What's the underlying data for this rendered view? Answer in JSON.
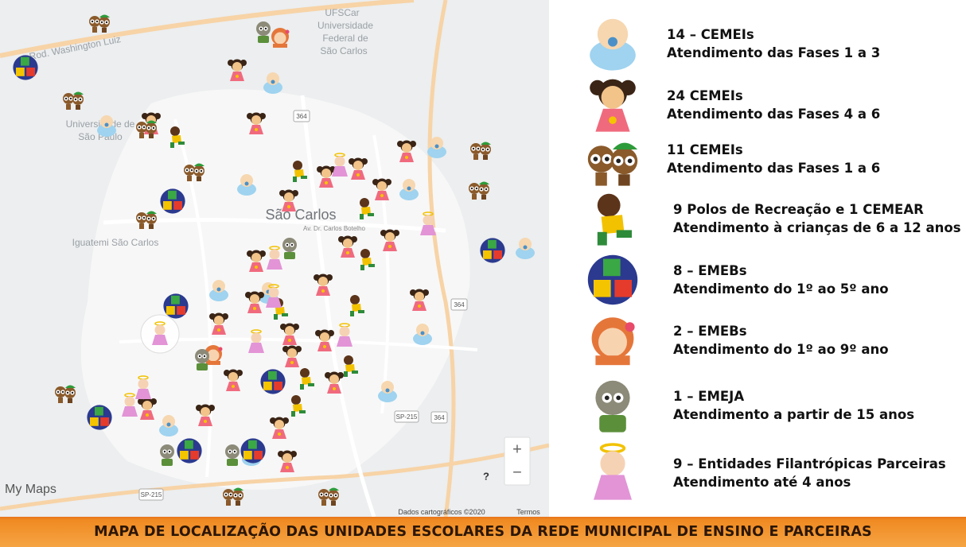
{
  "map": {
    "ufscar": [
      "UFSCar",
      "Universidade",
      "Federal de",
      "São Carlos"
    ],
    "road": "Rod. Washington Luiz",
    "usp": [
      "Universidade de",
      "São Paulo"
    ],
    "city": "São Carlos",
    "street": "Av. Dr. Carlos Botelho",
    "mall": "Iguatemi São Carlos",
    "shields": [
      "364",
      "364",
      "364",
      "SP-215",
      "SP-215"
    ],
    "brand": "My Maps",
    "credits": "Dados cartográficos ©2020",
    "terms": "Termos",
    "zoom_in": "+",
    "zoom_out": "−",
    "help": "?"
  },
  "legend": [
    {
      "title": "14 – CEMEIs",
      "description": "Atendimento das Fases 1 a 3"
    },
    {
      "title": "24 CEMEIs",
      "description": "Atendimento das Fases 4 a 6"
    },
    {
      "title": "11 CEMEIs",
      "description": "Atendimento das Fases 1 a 6"
    },
    {
      "title": "9 Polos de Recreação e 1 CEMEAR",
      "description": "Atendimento à crianças de 6 a 12 anos"
    },
    {
      "title": "8 – EMEBs",
      "description": "Atendimento do 1º ao 5º ano"
    },
    {
      "title": "2 – EMEBs",
      "description": "Atendimento do 1º ao 9º ano"
    },
    {
      "title": "1 – EMEJA",
      "description": "Atendimento a partir de 15 anos"
    },
    {
      "title": "9 – Entidades Filantrópicas Parceiras",
      "description": "Atendimento até 4 anos"
    }
  ],
  "footer": "MAPA DE LOCALIZAÇÃO DAS UNIDADES ESCOLARES DA REDE MUNICIPAL DE ENSINO E PARCEIRAS"
}
